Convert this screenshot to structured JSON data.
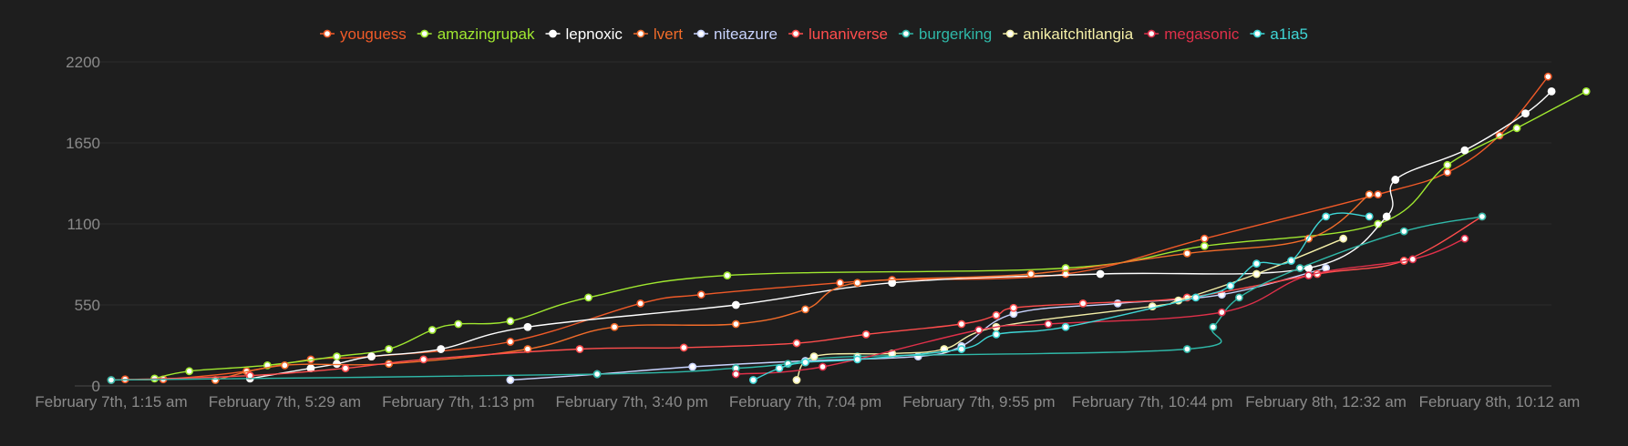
{
  "chart_data": {
    "type": "line",
    "title": "",
    "xlabel": "",
    "ylabel": "",
    "ylim": [
      0,
      2200
    ],
    "y_ticks": [
      0,
      550,
      1100,
      1650,
      2200
    ],
    "x_tick_labels": [
      "February 7th, 1:15 am",
      "February 7th, 5:29 am",
      "February 7th, 1:13 pm",
      "February 7th, 3:40 pm",
      "February 7th, 7:04 pm",
      "February 7th, 9:55 pm",
      "February 7th, 10:44 pm",
      "February 8th, 12:32 am",
      "February 8th, 10:12 am"
    ],
    "x_axis_note": "x values are positions along the categorical time axis (0 = first tick, 8 = last tick)",
    "grid": true,
    "legend_position": "top-center",
    "series": [
      {
        "name": "youguess",
        "color": "#f05a28",
        "points": [
          [
            0.08,
            45
          ],
          [
            0.3,
            45
          ],
          [
            0.78,
            100
          ],
          [
            1.15,
            180
          ],
          [
            1.5,
            200
          ],
          [
            2.3,
            300
          ],
          [
            3.05,
            560
          ],
          [
            3.4,
            620
          ],
          [
            4.2,
            700
          ],
          [
            4.5,
            720
          ],
          [
            5.5,
            760
          ],
          [
            6.3,
            1000
          ],
          [
            7.3,
            1300
          ],
          [
            7.7,
            1450
          ],
          [
            8.0,
            1700
          ],
          [
            8.28,
            2100
          ]
        ]
      },
      {
        "name": "amazingrupak",
        "color": "#a0e830",
        "points": [
          [
            0.25,
            50
          ],
          [
            0.45,
            100
          ],
          [
            0.9,
            140
          ],
          [
            1.3,
            200
          ],
          [
            1.6,
            250
          ],
          [
            1.85,
            380
          ],
          [
            2.0,
            420
          ],
          [
            2.3,
            440
          ],
          [
            2.75,
            600
          ],
          [
            3.55,
            750
          ],
          [
            5.5,
            800
          ],
          [
            6.3,
            950
          ],
          [
            7.3,
            1100
          ],
          [
            7.7,
            1500
          ],
          [
            8.1,
            1750
          ],
          [
            8.5,
            2000
          ]
        ]
      },
      {
        "name": "lepnoxic",
        "color": "#ffffff",
        "points": [
          [
            0.8,
            50
          ],
          [
            1.15,
            120
          ],
          [
            1.3,
            150
          ],
          [
            1.5,
            200
          ],
          [
            1.9,
            250
          ],
          [
            2.4,
            400
          ],
          [
            3.6,
            550
          ],
          [
            4.5,
            700
          ],
          [
            5.7,
            760
          ],
          [
            6.9,
            800
          ],
          [
            7.35,
            1150
          ],
          [
            7.4,
            1400
          ],
          [
            7.8,
            1600
          ],
          [
            8.15,
            1850
          ],
          [
            8.3,
            2000
          ]
        ]
      },
      {
        "name": "lvert",
        "color": "#f26c2a",
        "points": [
          [
            0.6,
            40
          ],
          [
            1.0,
            140
          ],
          [
            1.6,
            150
          ],
          [
            2.4,
            250
          ],
          [
            2.9,
            400
          ],
          [
            3.6,
            420
          ],
          [
            4.0,
            520
          ],
          [
            4.3,
            700
          ],
          [
            5.3,
            760
          ],
          [
            6.2,
            900
          ],
          [
            6.9,
            1000
          ],
          [
            7.25,
            1300
          ]
        ]
      },
      {
        "name": "niteazure",
        "color": "#c9d4ff",
        "points": [
          [
            2.3,
            40
          ],
          [
            2.8,
            80
          ],
          [
            3.35,
            130
          ],
          [
            4.0,
            170
          ],
          [
            4.65,
            200
          ],
          [
            4.9,
            270
          ],
          [
            5.2,
            490
          ],
          [
            5.8,
            560
          ],
          [
            6.4,
            620
          ],
          [
            7.0,
            800
          ]
        ]
      },
      {
        "name": "lunaniverse",
        "color": "#ff4d4d",
        "points": [
          [
            0.0,
            40
          ],
          [
            0.8,
            70
          ],
          [
            1.35,
            120
          ],
          [
            1.8,
            180
          ],
          [
            2.7,
            250
          ],
          [
            3.3,
            260
          ],
          [
            3.95,
            290
          ],
          [
            4.35,
            350
          ],
          [
            4.9,
            420
          ],
          [
            5.1,
            480
          ],
          [
            5.2,
            530
          ],
          [
            5.6,
            560
          ],
          [
            6.2,
            600
          ],
          [
            6.95,
            760
          ],
          [
            7.45,
            850
          ],
          [
            7.9,
            1150
          ]
        ]
      },
      {
        "name": "burgerking",
        "color": "#2fb8a8",
        "points": [
          [
            0.0,
            40
          ],
          [
            2.8,
            80
          ],
          [
            3.6,
            120
          ],
          [
            3.9,
            150
          ],
          [
            4.3,
            200
          ],
          [
            6.2,
            250
          ],
          [
            6.35,
            400
          ],
          [
            6.5,
            600
          ],
          [
            6.85,
            800
          ],
          [
            7.45,
            1050
          ],
          [
            7.9,
            1150
          ]
        ]
      },
      {
        "name": "anikaitchitlangia",
        "color": "#f5f0a8",
        "points": [
          [
            3.95,
            40
          ],
          [
            4.05,
            200
          ],
          [
            4.5,
            220
          ],
          [
            4.8,
            250
          ],
          [
            5.1,
            400
          ],
          [
            6.0,
            540
          ],
          [
            6.15,
            580
          ],
          [
            6.6,
            760
          ],
          [
            7.1,
            1000
          ]
        ]
      },
      {
        "name": "megasonic",
        "color": "#e0304a",
        "points": [
          [
            3.6,
            80
          ],
          [
            4.1,
            130
          ],
          [
            5.0,
            380
          ],
          [
            5.4,
            420
          ],
          [
            6.4,
            500
          ],
          [
            6.9,
            750
          ],
          [
            7.5,
            860
          ],
          [
            7.8,
            1000
          ]
        ]
      },
      {
        "name": "a1ia5",
        "color": "#3fd6d6",
        "points": [
          [
            3.7,
            40
          ],
          [
            3.85,
            120
          ],
          [
            4.0,
            160
          ],
          [
            4.3,
            180
          ],
          [
            4.9,
            250
          ],
          [
            5.1,
            350
          ],
          [
            5.5,
            400
          ],
          [
            6.25,
            600
          ],
          [
            6.45,
            680
          ],
          [
            6.6,
            830
          ],
          [
            6.8,
            850
          ],
          [
            7.0,
            1150
          ],
          [
            7.25,
            1150
          ]
        ]
      }
    ]
  }
}
